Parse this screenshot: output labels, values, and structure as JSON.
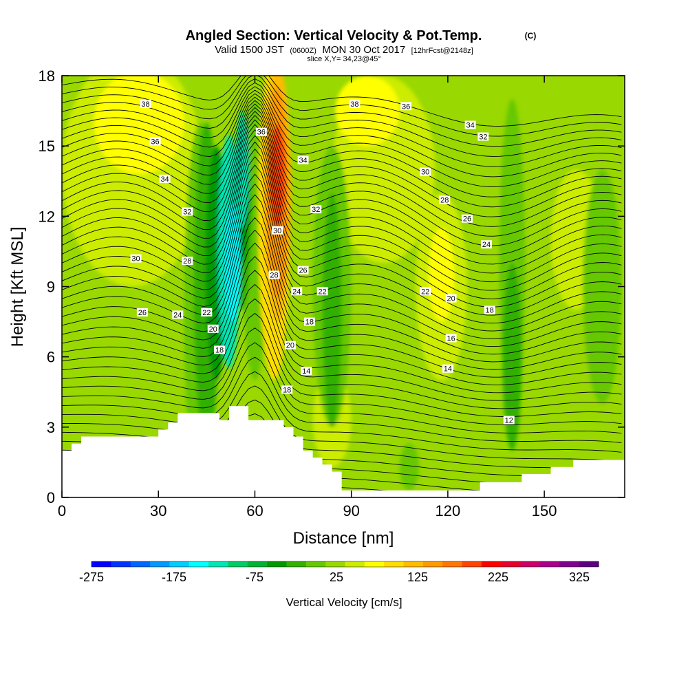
{
  "title": {
    "main": "Angled Section: Vertical Velocity & Pot.Temp.",
    "mark": "(C)",
    "valid_a": "Valid 1500 JST",
    "valid_b": "(0600Z)",
    "valid_c": "MON 30 Oct 2017",
    "valid_d": "[12hrFcst@2148z]",
    "slice": "slice X,Y= 34,23@45°"
  },
  "chart_data": {
    "type": "heatmap",
    "xlabel": "Distance [nm]",
    "ylabel": "Height [Kft MSL]",
    "xlim": [
      0,
      175
    ],
    "ylim": [
      0,
      18
    ],
    "x_ticks": [
      0,
      30,
      60,
      90,
      120,
      150
    ],
    "y_ticks": [
      0,
      3,
      6,
      9,
      12,
      15,
      18
    ],
    "grid": false,
    "fill_variable": "Vertical Velocity [cm/s]",
    "contour_variable": "Pot.Temp. (C)",
    "updraft_core": {
      "x": 67,
      "y": 13.5,
      "max_cms": 225
    },
    "downdraft_core": {
      "x": 54,
      "y": 10,
      "min_cms": -175
    },
    "terrain_profile": [
      [
        0,
        2.0
      ],
      [
        3,
        2.0
      ],
      [
        3,
        2.3
      ],
      [
        6,
        2.3
      ],
      [
        6,
        2.6
      ],
      [
        9,
        2.6
      ],
      [
        9,
        2.6
      ],
      [
        30,
        2.6
      ],
      [
        30,
        2.9
      ],
      [
        33,
        2.9
      ],
      [
        33,
        3.2
      ],
      [
        36,
        3.2
      ],
      [
        36,
        3.6
      ],
      [
        49,
        3.6
      ],
      [
        49,
        3.3
      ],
      [
        52,
        3.3
      ],
      [
        52,
        3.9
      ],
      [
        58,
        3.9
      ],
      [
        58,
        3.3
      ],
      [
        69,
        3.3
      ],
      [
        69,
        3.0
      ],
      [
        72,
        3.0
      ],
      [
        72,
        2.6
      ],
      [
        75,
        2.6
      ],
      [
        75,
        2.0
      ],
      [
        78,
        2.0
      ],
      [
        78,
        1.7
      ],
      [
        81,
        1.7
      ],
      [
        81,
        1.4
      ],
      [
        84,
        1.4
      ],
      [
        84,
        1.1
      ],
      [
        87,
        1.1
      ],
      [
        87,
        0.3
      ],
      [
        130,
        0.3
      ],
      [
        130,
        0.65
      ],
      [
        143,
        0.65
      ],
      [
        143,
        1.0
      ],
      [
        152,
        1.0
      ],
      [
        152,
        1.3
      ],
      [
        159,
        1.3
      ],
      [
        159,
        1.6
      ],
      [
        175,
        1.6
      ]
    ],
    "contour_labels": [
      {
        "x": 26,
        "y": 16.8,
        "text": "38"
      },
      {
        "x": 29,
        "y": 15.2,
        "text": "36"
      },
      {
        "x": 32,
        "y": 13.6,
        "text": "34"
      },
      {
        "x": 39,
        "y": 12.2,
        "text": "32"
      },
      {
        "x": 23,
        "y": 10.2,
        "text": "30"
      },
      {
        "x": 39,
        "y": 10.1,
        "text": "28"
      },
      {
        "x": 25,
        "y": 7.9,
        "text": "26"
      },
      {
        "x": 36,
        "y": 7.8,
        "text": "24"
      },
      {
        "x": 45,
        "y": 7.9,
        "text": "22"
      },
      {
        "x": 47,
        "y": 7.2,
        "text": "20"
      },
      {
        "x": 49,
        "y": 6.3,
        "text": "18"
      },
      {
        "x": 62,
        "y": 15.6,
        "text": "36"
      },
      {
        "x": 75,
        "y": 14.4,
        "text": "34"
      },
      {
        "x": 79,
        "y": 12.3,
        "text": "32"
      },
      {
        "x": 67,
        "y": 11.4,
        "text": "30"
      },
      {
        "x": 66,
        "y": 9.5,
        "text": "28"
      },
      {
        "x": 75,
        "y": 9.7,
        "text": "26"
      },
      {
        "x": 73,
        "y": 8.8,
        "text": "24"
      },
      {
        "x": 81,
        "y": 8.8,
        "text": "22"
      },
      {
        "x": 77,
        "y": 7.5,
        "text": "18"
      },
      {
        "x": 71,
        "y": 6.5,
        "text": "20"
      },
      {
        "x": 76,
        "y": 5.4,
        "text": "14"
      },
      {
        "x": 70,
        "y": 4.6,
        "text": "18"
      },
      {
        "x": 91,
        "y": 16.8,
        "text": "38"
      },
      {
        "x": 107,
        "y": 16.7,
        "text": "36"
      },
      {
        "x": 127,
        "y": 15.9,
        "text": "34"
      },
      {
        "x": 131,
        "y": 15.4,
        "text": "32"
      },
      {
        "x": 113,
        "y": 13.9,
        "text": "30"
      },
      {
        "x": 119,
        "y": 12.7,
        "text": "28"
      },
      {
        "x": 126,
        "y": 11.9,
        "text": "26"
      },
      {
        "x": 132,
        "y": 10.8,
        "text": "24"
      },
      {
        "x": 113,
        "y": 8.8,
        "text": "22"
      },
      {
        "x": 121,
        "y": 8.5,
        "text": "20"
      },
      {
        "x": 133,
        "y": 8.0,
        "text": "18"
      },
      {
        "x": 121,
        "y": 6.8,
        "text": "16"
      },
      {
        "x": 120,
        "y": 5.5,
        "text": "14"
      },
      {
        "x": 139,
        "y": 3.3,
        "text": "12"
      }
    ]
  },
  "colorbar": {
    "title": "Vertical Velocity [cm/s]",
    "tick_labels": [
      "-275",
      "-175",
      "-75",
      "25",
      "125",
      "225",
      "325"
    ],
    "colors": [
      "#0000ff",
      "#0033ff",
      "#0066ff",
      "#0099ff",
      "#00ccff",
      "#00ffff",
      "#00e6b3",
      "#00cc66",
      "#00b233",
      "#009900",
      "#33b000",
      "#66c800",
      "#99d800",
      "#ccec00",
      "#ffff00",
      "#ffdd00",
      "#ffbb00",
      "#ff9900",
      "#ff7700",
      "#ff4400",
      "#ff0000",
      "#e6002e",
      "#cc0066",
      "#aa008a",
      "#800090",
      "#5a0080"
    ]
  },
  "fill_colors": {
    "bg": "#99d800",
    "light": "#ccec00",
    "yellow": "#ffff00",
    "green": "#66c800",
    "mid_green": "#33b000",
    "dark_green": "#009900",
    "teal": "#00e6b3",
    "cyan": "#00ffff",
    "orange": "#ff9900",
    "red_orange": "#ff4400",
    "amber": "#ffbb00",
    "gold": "#ffdd00"
  }
}
